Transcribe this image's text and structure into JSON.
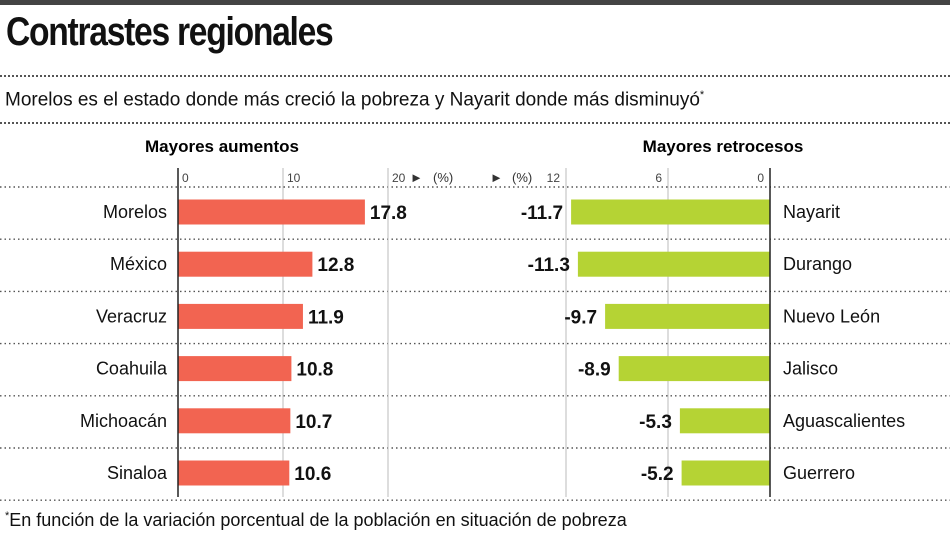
{
  "title": "Contrastes regionales",
  "subtitle": "Morelos es el estado donde más creció la pobreza y Nayarit donde más disminuyó",
  "subtitle_mark": "*",
  "footnote_mark": "*",
  "footnote": "En función de la variación porcentual de la población en situación de pobreza",
  "colors": {
    "increase": "#f26451",
    "decrease": "#b5d334",
    "rule": "#555555"
  },
  "chart_data": [
    {
      "type": "bar",
      "orientation": "horizontal",
      "title": "Mayores aumentos",
      "unit": "(%)",
      "unit_arrow": "►",
      "xlim": [
        0,
        20
      ],
      "ticks": [
        0,
        10,
        20
      ],
      "categories": [
        "Morelos",
        "México",
        "Veracruz",
        "Coahuila",
        "Michoacán",
        "Sinaloa"
      ],
      "values": [
        17.8,
        12.8,
        11.9,
        10.8,
        10.7,
        10.6
      ],
      "labels": [
        "17.8",
        "12.8",
        "11.9",
        "10.8",
        "10.7",
        "10.6"
      ]
    },
    {
      "type": "bar",
      "orientation": "horizontal",
      "direction": "right-to-left",
      "title": "Mayores retrocesos",
      "unit": "(%)",
      "unit_arrow": "►",
      "xlim": [
        12,
        0
      ],
      "ticks": [
        12,
        6,
        0
      ],
      "categories": [
        "Nayarit",
        "Durango",
        "Nuevo León",
        "Jalisco",
        "Aguascalientes",
        "Guerrero"
      ],
      "values": [
        -11.7,
        -11.3,
        -9.7,
        -8.9,
        -5.3,
        -5.2
      ],
      "labels": [
        "-11.7",
        "-11.3",
        "-9.7",
        "-8.9",
        "-5.3",
        "-5.2"
      ]
    }
  ]
}
